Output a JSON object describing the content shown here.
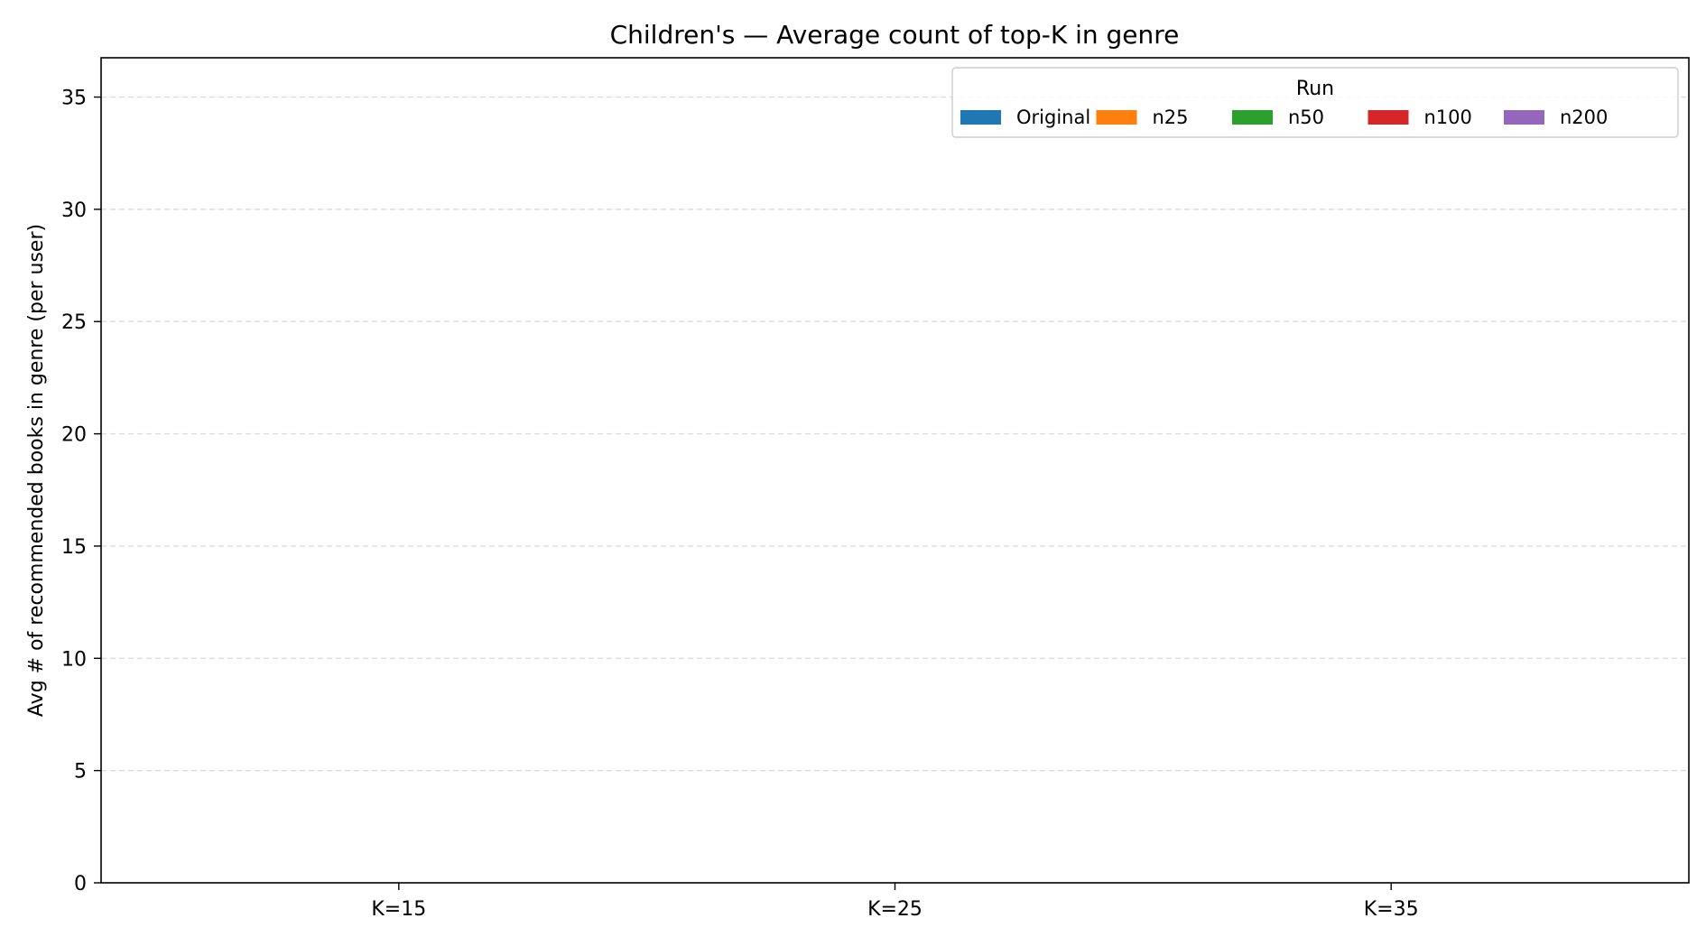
{
  "chart_data": {
    "type": "bar",
    "title": "Children's — Average count of top-K in genre",
    "xlabel": "",
    "ylabel": "Avg # of recommended books in genre (per user)",
    "categories": [
      "K=15",
      "K=25",
      "K=35"
    ],
    "ylim": [
      0,
      36.75
    ],
    "yticks": [
      0,
      5,
      10,
      15,
      20,
      25,
      30,
      35
    ],
    "grid": true,
    "legend": {
      "title": "Run",
      "placement": "upper-right",
      "columns": 5
    },
    "series": [
      {
        "name": "Original",
        "color": "#1f77b4",
        "values": [
          null,
          null,
          null
        ]
      },
      {
        "name": "n25",
        "color": "#ff7f0e",
        "values": [
          null,
          null,
          null
        ]
      },
      {
        "name": "n50",
        "color": "#2ca02c",
        "values": [
          null,
          null,
          null
        ]
      },
      {
        "name": "n100",
        "color": "#d62728",
        "values": [
          null,
          null,
          null
        ]
      },
      {
        "name": "n200",
        "color": "#9467bd",
        "values": [
          null,
          null,
          null
        ]
      }
    ]
  }
}
